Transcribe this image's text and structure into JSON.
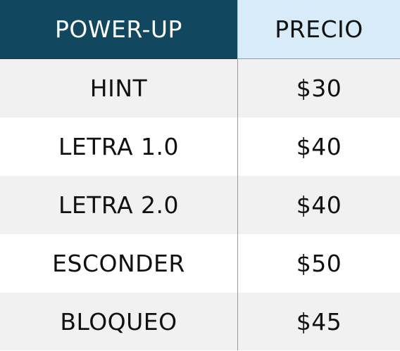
{
  "table": {
    "headers": {
      "name": "POWER-UP",
      "price": "PRECIO"
    },
    "rows": [
      {
        "name": "HINT",
        "price": "$30"
      },
      {
        "name": "LETRA 1.0",
        "price": "$40"
      },
      {
        "name": "LETRA 2.0",
        "price": "$40"
      },
      {
        "name": "ESCONDER",
        "price": "$50"
      },
      {
        "name": "BLOQUEO",
        "price": "$45"
      }
    ]
  },
  "colors": {
    "header_name_bg": "#11485f",
    "header_price_bg": "#d7ecf8",
    "row_alt_bg": "#f1f1f1"
  }
}
